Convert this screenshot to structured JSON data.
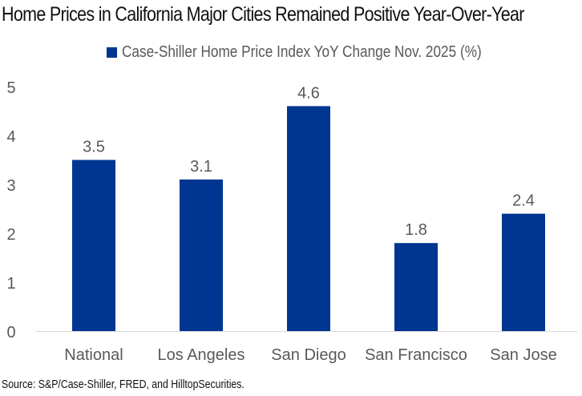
{
  "chart_data": {
    "type": "bar",
    "title": "Home Prices in California Major Cities Remained Positive Year-Over-Year",
    "categories": [
      "National",
      "Los Angeles",
      "San Diego",
      "San Francisco",
      "San Jose"
    ],
    "series": [
      {
        "name": "Case-Shiller Home Price Index YoY Change Nov. 2025 (%)",
        "values": [
          3.5,
          3.1,
          4.6,
          1.8,
          2.4
        ],
        "data_labels": [
          "3.5",
          "3.1",
          "4.6",
          "1.8",
          "2.4"
        ],
        "color": "#003591"
      }
    ],
    "xlabel": "",
    "ylabel": "",
    "ylim": [
      0,
      5
    ],
    "yticks": [
      0,
      1,
      2,
      3,
      4,
      5
    ],
    "ytick_labels": [
      "0",
      "1",
      "2",
      "3",
      "4",
      "5"
    ],
    "grid": false,
    "legend_position": "top-center",
    "source": "Source: S&P/Case-Shiller, FRED, and HilltopSecurities."
  },
  "colors": {
    "bar": "#003591",
    "axis_text": "#595959",
    "axis_line": "#d9d9d9",
    "title": "#111111"
  }
}
